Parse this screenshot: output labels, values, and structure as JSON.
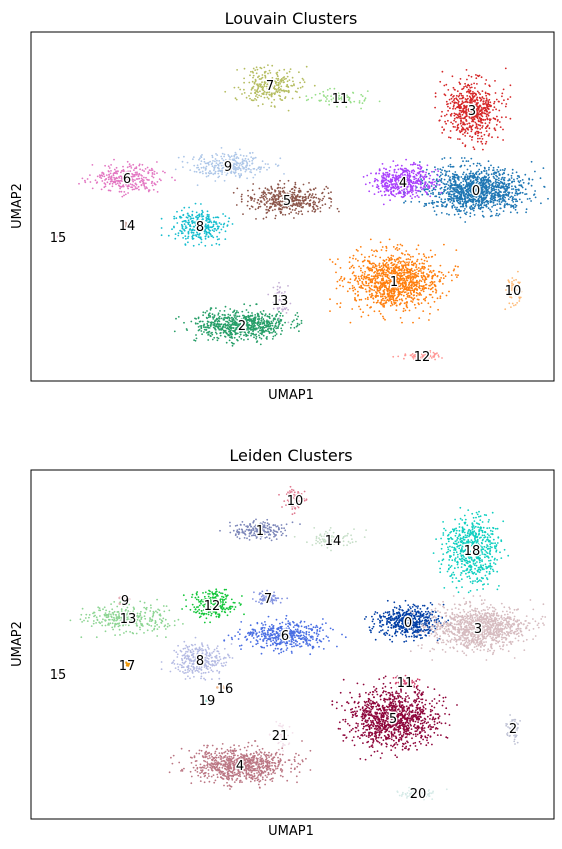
{
  "chart_data": [
    {
      "type": "scatter",
      "title": "Louvain Clusters",
      "xlabel": "UMAP1",
      "ylabel": "UMAP2",
      "grid": false,
      "legend": "on data",
      "clusters": [
        {
          "label": "0",
          "color": "#1f77b4",
          "center": [
            476,
            190
          ],
          "spread": [
            45,
            20
          ],
          "n": 1200
        },
        {
          "label": "1",
          "color": "#ff7f0e",
          "center": [
            394,
            281
          ],
          "spread": [
            40,
            26
          ],
          "n": 1100
        },
        {
          "label": "2",
          "color": "#279e68",
          "center": [
            242,
            325
          ],
          "spread": [
            42,
            13
          ],
          "n": 700
        },
        {
          "label": "3",
          "color": "#d62728",
          "center": [
            472,
            110
          ],
          "spread": [
            24,
            26
          ],
          "n": 600
        },
        {
          "label": "4",
          "color": "#aa40fc",
          "center": [
            403,
            182
          ],
          "spread": [
            28,
            14
          ],
          "n": 450
        },
        {
          "label": "5",
          "color": "#8c564b",
          "center": [
            287,
            200
          ],
          "spread": [
            38,
            12
          ],
          "n": 450
        },
        {
          "label": "6",
          "color": "#e377c2",
          "center": [
            127,
            178
          ],
          "spread": [
            30,
            12
          ],
          "n": 300
        },
        {
          "label": "7",
          "color": "#b5bd61",
          "center": [
            270,
            85
          ],
          "spread": [
            28,
            16
          ],
          "n": 260
        },
        {
          "label": "8",
          "color": "#17becf",
          "center": [
            200,
            226
          ],
          "spread": [
            24,
            14
          ],
          "n": 300
        },
        {
          "label": "9",
          "color": "#aec7e8",
          "center": [
            228,
            166
          ],
          "spread": [
            35,
            12
          ],
          "n": 280
        },
        {
          "label": "10",
          "color": "#ffbb78",
          "center": [
            513,
            290
          ],
          "spread": [
            6,
            12
          ],
          "n": 70
        },
        {
          "label": "11",
          "color": "#98df8a",
          "center": [
            340,
            98
          ],
          "spread": [
            26,
            7
          ],
          "n": 80
        },
        {
          "label": "12",
          "color": "#ff9896",
          "center": [
            422,
            356
          ],
          "spread": [
            18,
            4
          ],
          "n": 80
        },
        {
          "label": "13",
          "color": "#c5b0d5",
          "center": [
            280,
            300
          ],
          "spread": [
            8,
            14
          ],
          "n": 60
        },
        {
          "label": "14",
          "color": "#c49c94",
          "center": [
            127,
            225
          ],
          "spread": [
            3,
            3
          ],
          "n": 8
        },
        {
          "label": "15",
          "color": "#f7b6d2",
          "center": [
            58,
            237
          ],
          "spread": [
            1,
            1
          ],
          "n": 2
        }
      ]
    },
    {
      "type": "scatter",
      "title": "Leiden Clusters",
      "xlabel": "UMAP1",
      "ylabel": "UMAP2",
      "grid": false,
      "legend": "on data",
      "clusters": [
        {
          "label": "0",
          "color": "#023fa5",
          "center": [
            408,
            622
          ],
          "spread": [
            28,
            14
          ],
          "n": 500
        },
        {
          "label": "1",
          "color": "#7d87b9",
          "center": [
            260,
            530
          ],
          "spread": [
            25,
            8
          ],
          "n": 200
        },
        {
          "label": "2",
          "color": "#bec1d4",
          "center": [
            513,
            728
          ],
          "spread": [
            6,
            12
          ],
          "n": 70
        },
        {
          "label": "3",
          "color": "#d6bcc0",
          "center": [
            478,
            628
          ],
          "spread": [
            42,
            20
          ],
          "n": 1000
        },
        {
          "label": "4",
          "color": "#bb7784",
          "center": [
            240,
            765
          ],
          "spread": [
            44,
            15
          ],
          "n": 800
        },
        {
          "label": "5",
          "color": "#8e063b",
          "center": [
            393,
            718
          ],
          "spread": [
            40,
            26
          ],
          "n": 1100
        },
        {
          "label": "6",
          "color": "#4a6fe3",
          "center": [
            285,
            635
          ],
          "spread": [
            38,
            12
          ],
          "n": 450
        },
        {
          "label": "7",
          "color": "#8595e1",
          "center": [
            268,
            598
          ],
          "spread": [
            12,
            6
          ],
          "n": 80
        },
        {
          "label": "8",
          "color": "#b5bbe3",
          "center": [
            200,
            660
          ],
          "spread": [
            24,
            14
          ],
          "n": 300
        },
        {
          "label": "9",
          "color": "#e6afb9",
          "center": [
            125,
            600
          ],
          "spread": [
            5,
            4
          ],
          "n": 20
        },
        {
          "label": "10",
          "color": "#e07b91",
          "center": [
            295,
            500
          ],
          "spread": [
            10,
            10
          ],
          "n": 80
        },
        {
          "label": "11",
          "color": "#d33f6a",
          "center": [
            405,
            682
          ],
          "spread": [
            12,
            4
          ],
          "n": 60
        },
        {
          "label": "12",
          "color": "#11c638",
          "center": [
            212,
            605
          ],
          "spread": [
            20,
            14
          ],
          "n": 220
        },
        {
          "label": "13",
          "color": "#8dd593",
          "center": [
            128,
            618
          ],
          "spread": [
            36,
            12
          ],
          "n": 320
        },
        {
          "label": "14",
          "color": "#c6dec7",
          "center": [
            333,
            540
          ],
          "spread": [
            26,
            8
          ],
          "n": 80
        },
        {
          "label": "15",
          "color": "#ead3c6",
          "center": [
            58,
            674
          ],
          "spread": [
            1,
            1
          ],
          "n": 2
        },
        {
          "label": "16",
          "color": "#f0b98d",
          "center": [
            225,
            688
          ],
          "spread": [
            5,
            3
          ],
          "n": 12
        },
        {
          "label": "17",
          "color": "#ef9708",
          "center": [
            127,
            665
          ],
          "spread": [
            3,
            3
          ],
          "n": 8
        },
        {
          "label": "18",
          "color": "#0fcfc0",
          "center": [
            472,
            550
          ],
          "spread": [
            24,
            30
          ],
          "n": 600
        },
        {
          "label": "19",
          "color": "#9cded6",
          "center": [
            207,
            700
          ],
          "spread": [
            2,
            2
          ],
          "n": 4
        },
        {
          "label": "20",
          "color": "#d5eae7",
          "center": [
            418,
            793
          ],
          "spread": [
            18,
            5
          ],
          "n": 80
        },
        {
          "label": "21",
          "color": "#f3e1eb",
          "center": [
            280,
            735
          ],
          "spread": [
            8,
            14
          ],
          "n": 60
        }
      ]
    }
  ]
}
